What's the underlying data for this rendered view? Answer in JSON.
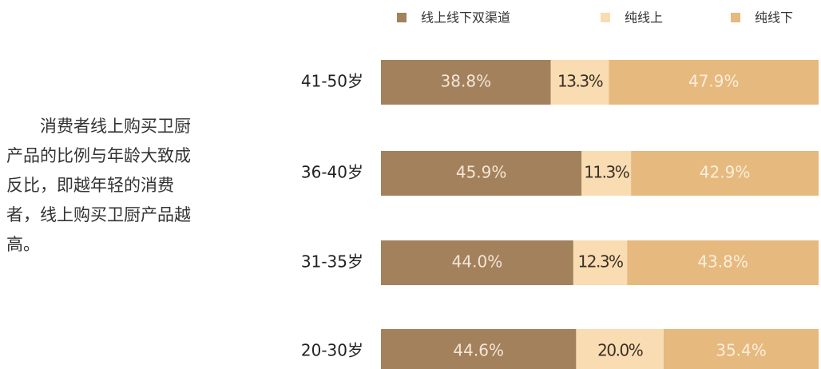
{
  "chart_data": {
    "type": "stacked-barh",
    "annotation": "消费者线上购买卫厨产品的比例与年龄大致成反比，即越年轻的消费者，线上购买卫厨产品越高。",
    "categories": [
      "41-50岁",
      "36-40岁",
      "31-35岁",
      "20-30岁"
    ],
    "series": [
      {
        "name": "线上线下双渠道",
        "color": "#a3815c",
        "label_color": "#f3e6d6",
        "values": [
          38.8,
          45.9,
          44.0,
          44.6
        ],
        "value_labels": [
          "38.8%",
          "45.9%",
          "44.0%",
          "44.6%"
        ]
      },
      {
        "name": "纯线上",
        "color": "#f9dcb2",
        "label_color": "#3a3026",
        "values": [
          13.3,
          11.3,
          12.3,
          20.0
        ],
        "value_labels": [
          "13.3%",
          "11.3%",
          "12.3%",
          "20.0%"
        ]
      },
      {
        "name": "纯线下",
        "color": "#e6b97e",
        "label_color": "#fbeedc",
        "values": [
          47.9,
          42.9,
          43.8,
          35.4
        ],
        "value_labels": [
          "47.9%",
          "42.9%",
          "43.8%",
          "35.4%"
        ]
      }
    ],
    "legend": "top"
  }
}
